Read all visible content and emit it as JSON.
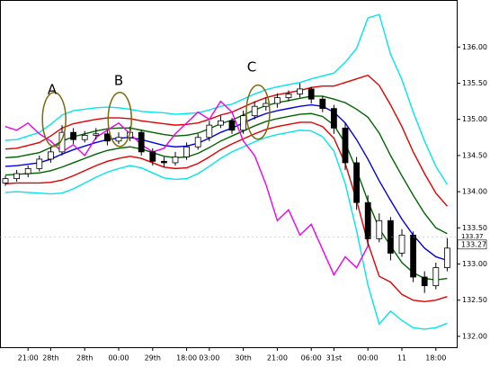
{
  "chart_data": {
    "type": "candlestick",
    "categories": [
      null,
      null,
      "21:00",
      null,
      "28th",
      null,
      null,
      "28th",
      null,
      null,
      "00:00",
      null,
      null,
      "29th",
      null,
      null,
      "18:00",
      null,
      "03:00",
      null,
      null,
      "30th",
      null,
      null,
      "21:00",
      null,
      null,
      "06:00",
      null,
      "31st",
      null,
      null,
      "00:00",
      null,
      null,
      "11",
      null,
      null,
      "18:00",
      null
    ],
    "open": [
      134.12,
      134.18,
      134.25,
      134.32,
      134.45,
      134.55,
      134.82,
      134.72,
      134.78,
      134.8,
      134.7,
      134.75,
      134.82,
      134.55,
      134.42,
      134.4,
      134.48,
      134.62,
      134.75,
      134.92,
      134.98,
      134.85,
      135.05,
      135.18,
      135.22,
      135.3,
      135.35,
      135.42,
      135.28,
      135.15,
      134.88,
      134.4,
      133.85,
      133.35,
      133.6,
      133.15,
      133.4,
      132.82,
      132.7,
      132.95
    ],
    "high": [
      134.22,
      134.3,
      134.36,
      134.5,
      134.62,
      134.92,
      134.88,
      134.84,
      134.88,
      134.85,
      134.82,
      134.9,
      134.86,
      134.6,
      134.48,
      134.55,
      134.68,
      134.8,
      134.98,
      135.05,
      135.02,
      135.12,
      135.25,
      135.3,
      135.36,
      135.4,
      135.5,
      135.45,
      135.32,
      135.2,
      134.95,
      134.48,
      133.95,
      133.7,
      133.65,
      133.48,
      133.45,
      132.9,
      133.02,
      133.36
    ],
    "low": [
      134.08,
      134.14,
      134.2,
      134.28,
      134.4,
      134.5,
      134.66,
      134.68,
      134.72,
      134.64,
      134.66,
      134.7,
      134.5,
      134.36,
      134.34,
      134.36,
      134.44,
      134.58,
      134.7,
      134.88,
      134.8,
      134.8,
      135.0,
      135.12,
      135.16,
      135.25,
      135.3,
      135.22,
      135.1,
      134.8,
      134.3,
      133.75,
      133.25,
      133.3,
      133.05,
      133.1,
      132.75,
      132.6,
      132.65,
      132.9
    ],
    "close": [
      134.18,
      134.25,
      134.32,
      134.45,
      134.55,
      134.82,
      134.72,
      134.78,
      134.8,
      134.7,
      134.75,
      134.82,
      134.55,
      134.42,
      134.4,
      134.48,
      134.62,
      134.75,
      134.92,
      134.98,
      134.85,
      135.05,
      135.18,
      135.22,
      135.3,
      135.35,
      135.42,
      135.28,
      135.15,
      134.88,
      134.4,
      133.85,
      133.35,
      133.6,
      133.15,
      133.4,
      132.82,
      132.7,
      132.95,
      133.22
    ],
    "series": [
      {
        "color": "#00e5ee",
        "values": [
          134.71,
          134.72,
          134.77,
          134.82,
          134.93,
          135.06,
          135.12,
          135.14,
          135.16,
          135.17,
          135.16,
          135.14,
          135.11,
          135.1,
          135.09,
          135.07,
          135.08,
          135.09,
          135.13,
          135.18,
          135.21,
          135.28,
          135.35,
          135.41,
          135.45,
          135.48,
          135.51,
          135.56,
          135.6,
          135.64,
          135.79,
          135.98,
          136.4,
          136.45,
          135.9,
          135.55,
          135.1,
          134.7,
          134.35,
          134.1
        ]
      },
      {
        "color": "#00e5ee",
        "values": [
          133.99,
          134.0,
          133.99,
          133.98,
          133.97,
          133.98,
          134.04,
          134.12,
          134.2,
          134.27,
          134.32,
          134.36,
          134.33,
          134.26,
          134.19,
          134.17,
          134.18,
          134.25,
          134.35,
          134.46,
          134.55,
          134.62,
          134.69,
          134.75,
          134.79,
          134.82,
          134.85,
          134.84,
          134.76,
          134.56,
          134.11,
          133.46,
          132.71,
          132.17,
          132.35,
          132.22,
          132.12,
          132.1,
          132.12,
          132.18
        ]
      },
      {
        "color": "#e00000",
        "values": [
          134.59,
          134.6,
          134.64,
          134.68,
          134.77,
          134.88,
          134.94,
          134.97,
          135.0,
          135.02,
          135.02,
          135.01,
          134.98,
          134.96,
          134.94,
          134.92,
          134.93,
          134.95,
          135.0,
          135.06,
          135.1,
          135.17,
          135.24,
          135.3,
          135.34,
          135.37,
          135.4,
          135.44,
          135.46,
          135.46,
          135.51,
          135.56,
          135.61,
          135.47,
          135.2,
          134.9,
          134.55,
          134.25,
          133.98,
          133.8
        ]
      },
      {
        "color": "#e00000",
        "values": [
          134.11,
          134.12,
          134.12,
          134.12,
          134.13,
          134.16,
          134.22,
          134.29,
          134.36,
          134.42,
          134.46,
          134.49,
          134.46,
          134.4,
          134.34,
          134.32,
          134.33,
          134.39,
          134.48,
          134.58,
          134.66,
          134.73,
          134.8,
          134.86,
          134.9,
          134.93,
          134.96,
          134.96,
          134.9,
          134.74,
          134.39,
          133.88,
          133.29,
          132.83,
          132.75,
          132.58,
          132.5,
          132.48,
          132.5,
          132.55
        ]
      },
      {
        "color": "#006400",
        "values": [
          134.47,
          134.48,
          134.51,
          134.54,
          134.61,
          134.7,
          134.76,
          134.8,
          134.84,
          134.87,
          134.88,
          134.88,
          134.85,
          134.82,
          134.79,
          134.77,
          134.78,
          134.81,
          134.87,
          134.94,
          134.99,
          135.06,
          135.13,
          135.19,
          135.23,
          135.26,
          135.29,
          135.32,
          135.32,
          135.28,
          135.23,
          135.14,
          135.03,
          134.81,
          134.5,
          134.22,
          133.95,
          133.7,
          133.5,
          133.42
        ]
      },
      {
        "color": "#006400",
        "values": [
          134.23,
          134.24,
          134.25,
          134.26,
          134.29,
          134.34,
          134.4,
          134.46,
          134.52,
          134.57,
          134.6,
          134.62,
          134.59,
          134.54,
          134.49,
          134.47,
          134.48,
          134.53,
          134.61,
          134.7,
          134.77,
          134.84,
          134.91,
          134.97,
          135.01,
          135.04,
          135.07,
          135.08,
          135.04,
          134.92,
          134.67,
          134.3,
          133.87,
          133.49,
          133.25,
          133.02,
          132.88,
          132.8,
          132.78,
          132.8
        ]
      },
      {
        "color": "#0000e0",
        "values": [
          134.35,
          134.36,
          134.38,
          134.4,
          134.45,
          134.52,
          134.58,
          134.63,
          134.68,
          134.72,
          134.74,
          134.75,
          134.72,
          134.68,
          134.64,
          134.62,
          134.63,
          134.67,
          134.74,
          134.82,
          134.88,
          134.95,
          135.02,
          135.08,
          135.12,
          135.15,
          135.18,
          135.2,
          135.18,
          135.1,
          134.95,
          134.72,
          134.45,
          134.15,
          133.88,
          133.62,
          133.4,
          133.22,
          133.1,
          133.05
        ]
      },
      {
        "color": "#ee00ee",
        "values": [
          134.9,
          134.85,
          134.95,
          134.8,
          134.7,
          134.55,
          134.65,
          134.5,
          134.75,
          134.85,
          134.95,
          134.8,
          134.65,
          134.55,
          134.6,
          134.8,
          134.95,
          135.1,
          135.0,
          135.25,
          135.1,
          134.7,
          134.5,
          134.1,
          133.6,
          133.75,
          133.4,
          133.55,
          133.2,
          132.85,
          133.1,
          132.95,
          133.25,
          null,
          null,
          null,
          null,
          null,
          null,
          null
        ]
      }
    ],
    "ylim": [
      131.85,
      136.65
    ],
    "yticks": [
      {
        "value": 132.0,
        "label": "132.00"
      },
      {
        "value": 132.5,
        "label": "132.50"
      },
      {
        "value": 133.0,
        "label": "133.00"
      },
      {
        "value": 133.5,
        "label": "133.50"
      },
      {
        "value": 134.0,
        "label": "134.00"
      },
      {
        "value": 134.5,
        "label": "134.50"
      },
      {
        "value": 135.0,
        "label": "135.00"
      },
      {
        "value": 135.5,
        "label": "135.50"
      },
      {
        "value": 136.0,
        "label": "136.00"
      }
    ],
    "last_price": {
      "value": 133.27,
      "label": "133.27"
    },
    "ask_price": {
      "value": 133.37,
      "label": "133.37"
    },
    "annotations": [
      {
        "label": "A"
      },
      {
        "label": "B"
      },
      {
        "label": "C"
      }
    ]
  }
}
